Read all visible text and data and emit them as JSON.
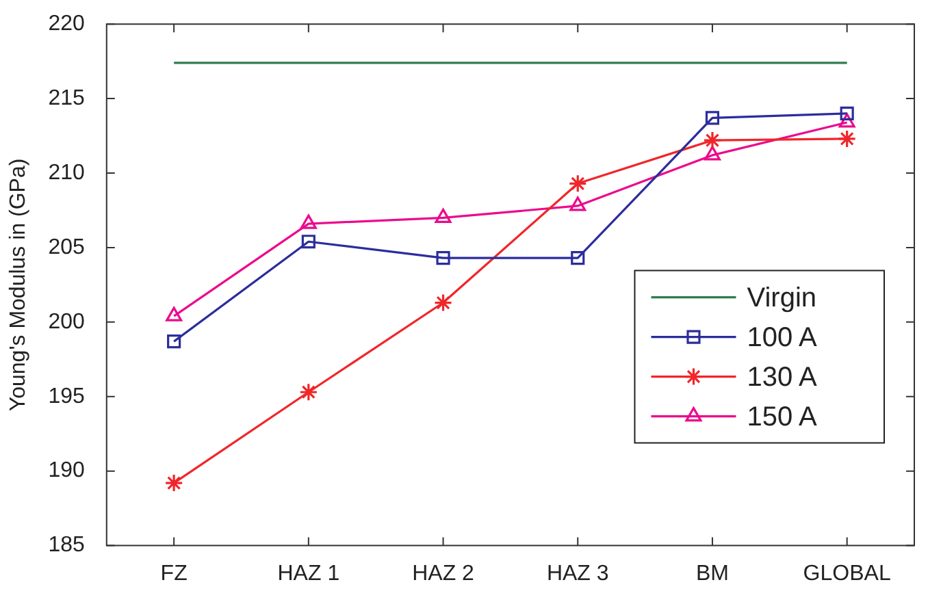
{
  "chart_data": {
    "type": "line",
    "ylabel": "Young's Modulus in (GPa)",
    "categories": [
      "FZ",
      "HAZ 1",
      "HAZ 2",
      "HAZ 3",
      "BM",
      "GLOBAL"
    ],
    "ylim": [
      185,
      220
    ],
    "yticks": [
      185,
      190,
      195,
      200,
      205,
      210,
      215,
      220
    ],
    "grid": false,
    "legend": "bottom right",
    "series": [
      {
        "name": "Virgin",
        "color": "#2e7d4f",
        "marker": "none",
        "values": [
          217.4,
          217.4,
          217.4,
          217.4,
          217.4,
          217.4
        ]
      },
      {
        "name": "100 A",
        "color": "#2b2d9c",
        "marker": "square",
        "values": [
          198.7,
          205.4,
          204.3,
          204.3,
          213.7,
          214.0
        ]
      },
      {
        "name": "130 A",
        "color": "#f0262a",
        "marker": "cross",
        "values": [
          189.2,
          195.3,
          201.3,
          209.3,
          212.2,
          212.3
        ]
      },
      {
        "name": "150 A",
        "color": "#ec0a8c",
        "marker": "triangle",
        "values": [
          200.4,
          206.6,
          207.0,
          207.8,
          211.2,
          213.4
        ]
      }
    ]
  }
}
